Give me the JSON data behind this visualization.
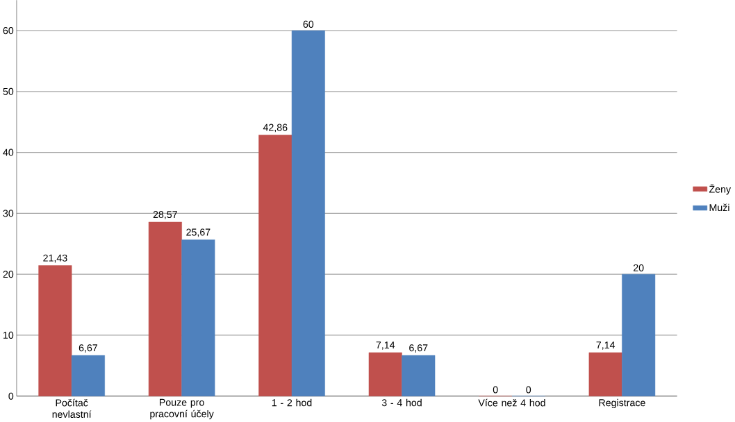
{
  "chart_data": {
    "type": "bar",
    "categories": [
      "Počítač nevlastní",
      "Pouze pro pracovní účely",
      "1 - 2 hod",
      "3 - 4 hod",
      "Více než 4 hod",
      "Registrace"
    ],
    "series": [
      {
        "name": "Ženy",
        "color": "#c0504d",
        "values": [
          21.43,
          28.57,
          42.86,
          7.14,
          0,
          7.14
        ],
        "value_labels": [
          "21,43",
          "28,57",
          "42,86",
          "7,14",
          "0",
          "7,14"
        ]
      },
      {
        "name": "Muži",
        "color": "#4f81bd",
        "values": [
          6.67,
          25.67,
          60,
          6.67,
          0,
          20
        ],
        "value_labels": [
          "6,67",
          "25,67",
          "60",
          "6,67",
          "0",
          "20"
        ]
      }
    ],
    "ylim": [
      0,
      65
    ],
    "yticks": [
      0,
      10,
      20,
      30,
      40,
      50,
      60
    ],
    "grid": "y",
    "legend": "right"
  }
}
